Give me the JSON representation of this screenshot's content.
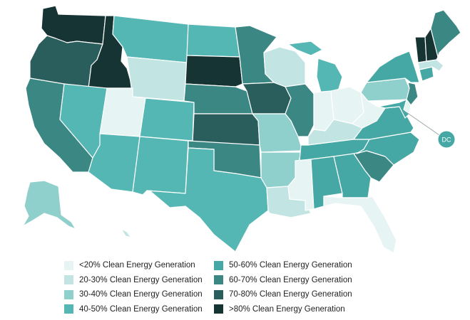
{
  "colors": {
    "lt20": "#e6f4f3",
    "b20_30": "#c2e5e3",
    "b30_40": "#8fcfcc",
    "b40_50": "#55b7b4",
    "b50_60": "#46a8a5",
    "b60_70": "#3a8784",
    "b70_80": "#2a5e5c",
    "gt80": "#163433"
  },
  "legend": {
    "items": [
      {
        "label": "<20% Clean Energy Generation",
        "color": "#e6f4f3"
      },
      {
        "label": "20-30% Clean Energy Generation",
        "color": "#c2e5e3"
      },
      {
        "label": "30-40% Clean Energy Generation",
        "color": "#8fcfcc"
      },
      {
        "label": "40-50% Clean Energy Generation",
        "color": "#55b7b4"
      },
      {
        "label": "50-60% Clean Energy Generation",
        "color": "#46a8a5"
      },
      {
        "label": "60-70% Clean Energy Generation",
        "color": "#3a8784"
      },
      {
        "label": "70-80% Clean Energy Generation",
        "color": "#2a5e5c"
      },
      {
        "label": ">80% Clean Energy Generation",
        "color": "#163433"
      }
    ]
  },
  "states": {
    "WA": "gt80",
    "OR": "b70_80",
    "CA": "b60_70",
    "ID": "gt80",
    "NV": "b40_50",
    "MT": "b40_50",
    "WY": "b20_30",
    "UT": "lt20",
    "AZ": "b40_50",
    "CO": "b40_50",
    "NM": "b40_50",
    "ND": "b40_50",
    "SD": "gt80",
    "NE": "b60_70",
    "KS": "b70_80",
    "OK": "b60_70",
    "TX": "b40_50",
    "MN": "b60_70",
    "IA": "b70_80",
    "MO": "b30_40",
    "AR": "b30_40",
    "LA": "b20_30",
    "WI": "b20_30",
    "IL": "b60_70",
    "MS": "lt20",
    "MI": "b40_50",
    "IN": "lt20",
    "OH": "lt20",
    "KY": "b20_30",
    "TN": "b50_60",
    "AL": "b50_60",
    "GA": "b50_60",
    "FL": "lt20",
    "SC": "b60_70",
    "NC": "b50_60",
    "VA": "b50_60",
    "WV": "lt20",
    "PA": "b30_40",
    "NY": "b50_60",
    "VT": "gt80",
    "NH": "gt80",
    "ME": "b60_70",
    "MA": "b20_30",
    "CT": "b50_60",
    "NJ": "b60_70",
    "MD": "b50_60",
    "DE": "lt20",
    "AK": "b30_40",
    "HI": "b20_30",
    "DC": "b50_60"
  },
  "dc": {
    "label": "DC"
  }
}
